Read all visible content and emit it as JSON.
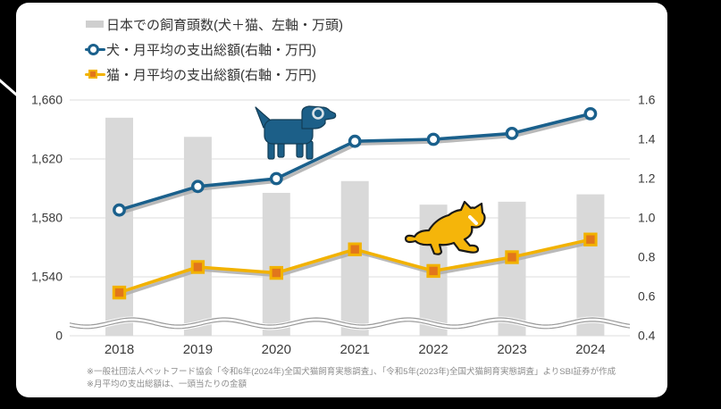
{
  "legend": {
    "items": [
      {
        "label": "日本での飼育頭数(犬＋猫、左軸・万頭)",
        "marker": "gray-bar",
        "color": "#D9D9D9"
      },
      {
        "label": "犬・月平均の支出総額(右軸・万円)",
        "marker": "circle-on-line",
        "color": "#1A608C"
      },
      {
        "label": "猫・月平均の支出総額(右軸・万円)",
        "marker": "square-on-line",
        "color": "#F2B200",
        "marker_fill": "#E2761B"
      }
    ]
  },
  "chart_data": {
    "type": "combo-bar-line",
    "categories": [
      "2018",
      "2019",
      "2020",
      "2021",
      "2022",
      "2023",
      "2024"
    ],
    "series": [
      {
        "name": "日本での飼育頭数(犬＋猫、左軸・万頭)",
        "type": "bar",
        "axis": "left",
        "color": "#D9D9D9",
        "values": [
          1648,
          1635,
          1597,
          1605,
          1589,
          1591,
          1596
        ]
      },
      {
        "name": "犬・月平均の支出総額(右軸・万円)",
        "type": "line",
        "axis": "right",
        "color": "#1A608C",
        "marker": "circle",
        "values": [
          1.04,
          1.16,
          1.2,
          1.39,
          1.4,
          1.43,
          1.53
        ]
      },
      {
        "name": "猫・月平均の支出総額(右軸・万円)",
        "type": "line",
        "axis": "right",
        "color": "#F2B200",
        "marker": "square",
        "marker_color": "#E2761B",
        "values": [
          0.62,
          0.75,
          0.72,
          0.84,
          0.73,
          0.8,
          0.89
        ]
      }
    ],
    "left_axis": {
      "tick_labels": [
        "1,660",
        "1,620",
        "1,580",
        "1,540",
        "0"
      ],
      "tick_values": [
        1660,
        1620,
        1580,
        1540,
        0
      ],
      "axis_break": true,
      "unit": "万頭"
    },
    "right_axis": {
      "tick_labels": [
        "1.6",
        "1.4",
        "1.2",
        "1.0",
        "0.8",
        "0.6",
        "0.4"
      ],
      "min": 0.4,
      "max": 1.6,
      "unit": "万円"
    },
    "grid": true,
    "legend_position": "top-left",
    "shadow_color": "#ADADAD"
  },
  "footnotes": {
    "line1": "※一般社団法人ペットフード協会「令和6年(2024年)全国犬猫飼育実態調査」、「令和5年(2023年)全国犬猫飼育実態調査」よりSBI証券が作成",
    "line2": "※月平均の支出総額は、一頭当たりの金額"
  },
  "decorations": {
    "dog_icon_color": "#1C5F88",
    "cat_icon_color": "#F5B50A",
    "bar_color": "#D9D9D9",
    "gridline_color": "#DDDDDD"
  }
}
